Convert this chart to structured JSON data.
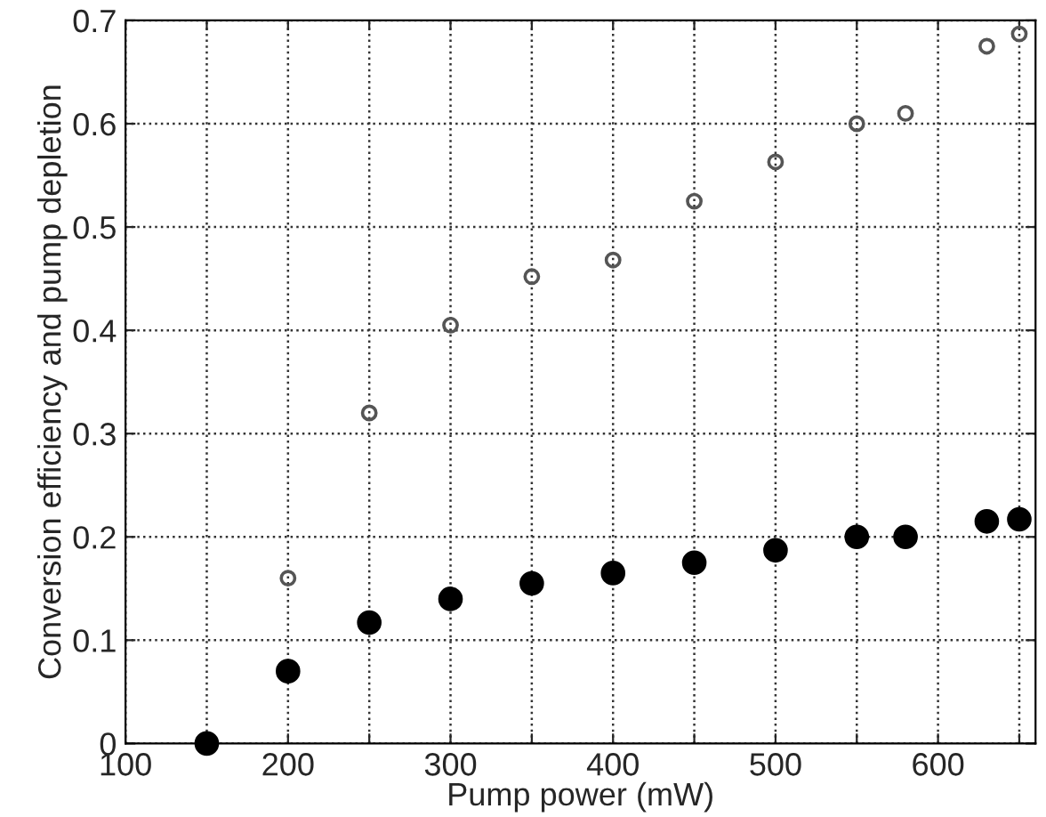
{
  "chart_data": {
    "type": "scatter",
    "xlabel": "Pump power (mW)",
    "ylabel": "Conversion efficiency and pump depletion",
    "xlim": [
      100,
      660
    ],
    "xticks": [
      100,
      {
        "value": 150,
        "label": null
      },
      200,
      {
        "value": 250,
        "label": null
      },
      300,
      {
        "value": 350,
        "label": null
      },
      400,
      {
        "value": 450,
        "label": null
      },
      500,
      {
        "value": 550,
        "label": null
      },
      600,
      {
        "value": 650,
        "label": null
      }
    ],
    "ylim": [
      0,
      0.7
    ],
    "yticks": [
      0,
      0.1,
      0.2,
      0.3,
      0.4,
      0.5,
      0.6,
      0.7
    ],
    "grid": true,
    "line_style": "dotted",
    "series": [
      {
        "color": "#555555",
        "marker": "circle",
        "x": [
          200,
          250,
          300,
          350,
          400,
          450,
          500,
          550,
          580,
          630,
          650
        ],
        "values": [
          0.16,
          0.32,
          0.405,
          0.452,
          0.468,
          0.525,
          0.563,
          0.6,
          0.61,
          0.675,
          0.687
        ]
      },
      {
        "color": "#000000",
        "marker": "circle",
        "x": [
          150,
          200,
          250,
          300,
          350,
          400,
          450,
          500,
          550,
          580,
          630,
          650
        ],
        "values": [
          0,
          0.07,
          0.117,
          0.14,
          0.155,
          0.165,
          0.175,
          0.187,
          0.2,
          0.2,
          0.215,
          0.217
        ]
      }
    ]
  }
}
